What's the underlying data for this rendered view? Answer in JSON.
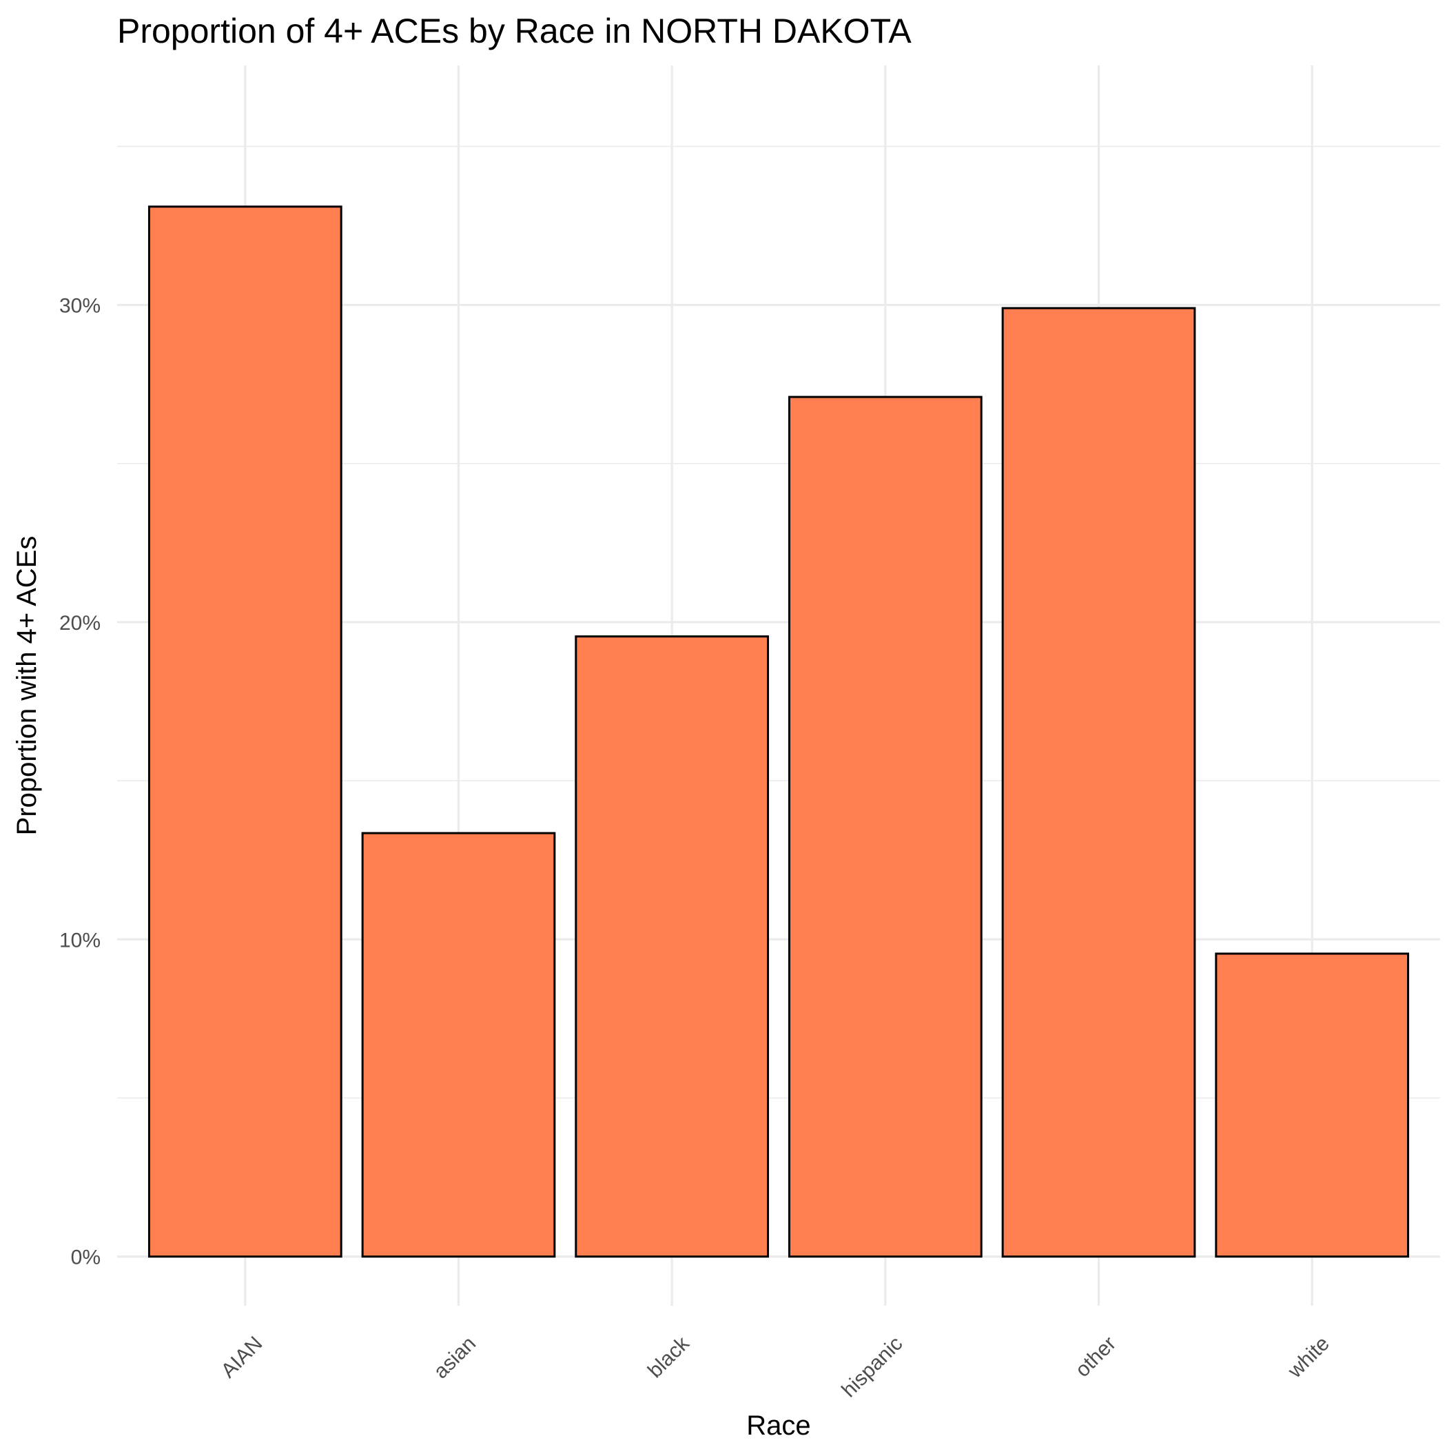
{
  "chart_data": {
    "type": "bar",
    "title": "Proportion of 4+ ACEs by Race in NORTH DAKOTA",
    "xlabel": "Race",
    "ylabel": "Proportion with 4+ ACEs",
    "categories": [
      "AIAN",
      "asian",
      "black",
      "hispanic",
      "other",
      "white"
    ],
    "values": [
      0.331,
      0.1335,
      0.1955,
      0.271,
      0.299,
      0.0955
    ],
    "ylim": [
      -0.0155,
      0.3755
    ],
    "yticks": [
      0,
      0.1,
      0.2,
      0.3
    ],
    "yticklabels": [
      "0%",
      "10%",
      "20%",
      "30%"
    ],
    "grid": true,
    "legend": "none",
    "colors": {
      "bar_fill": "#ff7f50",
      "bar_stroke": "#000000",
      "grid": "#ebebeb"
    }
  }
}
